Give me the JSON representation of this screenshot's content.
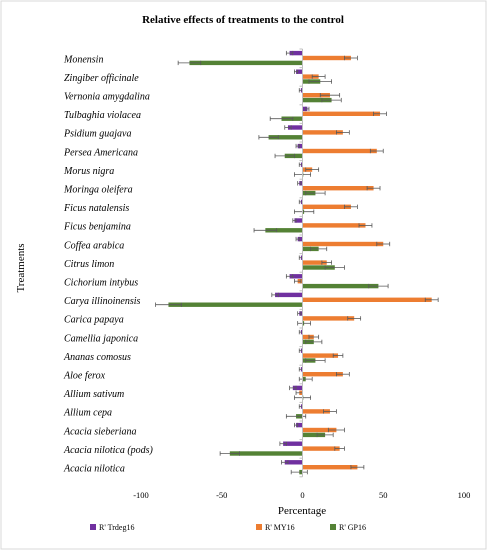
{
  "chart_data": {
    "type": "bar",
    "orientation": "horizontal",
    "title": "Relative effects of treatments to the control",
    "xlabel": "Percentage",
    "ylabel": "Treatments",
    "xlim": [
      -100,
      100
    ],
    "xticks": [
      "-100",
      "-50",
      "0",
      "50",
      "100"
    ],
    "grid": false,
    "legend_position": "bottom",
    "categories": [
      "Monensin",
      "Zingiber officinale",
      "Vernonia amygdalina",
      "Tulbaghia violacea",
      "Psidium guajava",
      "Persea Americana",
      "Morus nigra",
      "Moringa oleifera",
      "Ficus natalensis",
      "Ficus benjamina",
      "Coffea arabica",
      "Citrus limon",
      "Cichorium intybus",
      "Carya illinoinensis",
      "Carica papaya",
      "Camellia japonica",
      "Ananas comosus",
      "Aloe ferox",
      "Allium sativum",
      "Allium cepa",
      "Acacia sieberiana",
      "Acacia nilotica (pods)",
      "Acacia nilotica"
    ],
    "series": [
      {
        "name": "R' Trdeg16",
        "color": "#7030a0",
        "values": [
          -8,
          -4,
          -1,
          3,
          -9,
          -3,
          -1,
          -2,
          -1,
          -5,
          -3,
          -1,
          -8,
          -17,
          -2,
          -1,
          -1,
          -1,
          -6,
          -1,
          -4,
          -12,
          -11
        ],
        "errors": [
          2,
          1,
          1,
          1,
          2,
          1,
          1,
          1,
          1,
          1,
          1,
          1,
          2,
          2,
          1,
          1,
          1,
          1,
          2,
          1,
          1,
          2,
          2
        ]
      },
      {
        "name": "R' MY16",
        "color": "#ed7d31",
        "values": [
          30,
          10,
          17,
          48,
          25,
          46,
          6,
          44,
          30,
          39,
          50,
          15,
          -3,
          80,
          32,
          7,
          22,
          25,
          -2,
          17,
          21,
          23,
          34
        ],
        "errors": [
          4,
          4,
          6,
          4,
          4,
          4,
          4,
          4,
          4,
          4,
          4,
          3,
          2,
          4,
          4,
          3,
          3,
          4,
          2,
          4,
          5,
          3,
          4
        ]
      },
      {
        "name": "R' GP16",
        "color": "#548235",
        "values": [
          -70,
          11,
          18,
          -13,
          -21,
          -11,
          0,
          8,
          1,
          -23,
          10,
          20,
          47,
          -83,
          1,
          7,
          8,
          2,
          0,
          -4,
          14,
          -45,
          -2
        ],
        "errors": [
          7,
          7,
          6,
          7,
          6,
          6,
          5,
          6,
          6,
          7,
          5,
          6,
          6,
          8,
          4,
          5,
          6,
          4,
          5,
          6,
          5,
          6,
          5
        ]
      }
    ]
  }
}
